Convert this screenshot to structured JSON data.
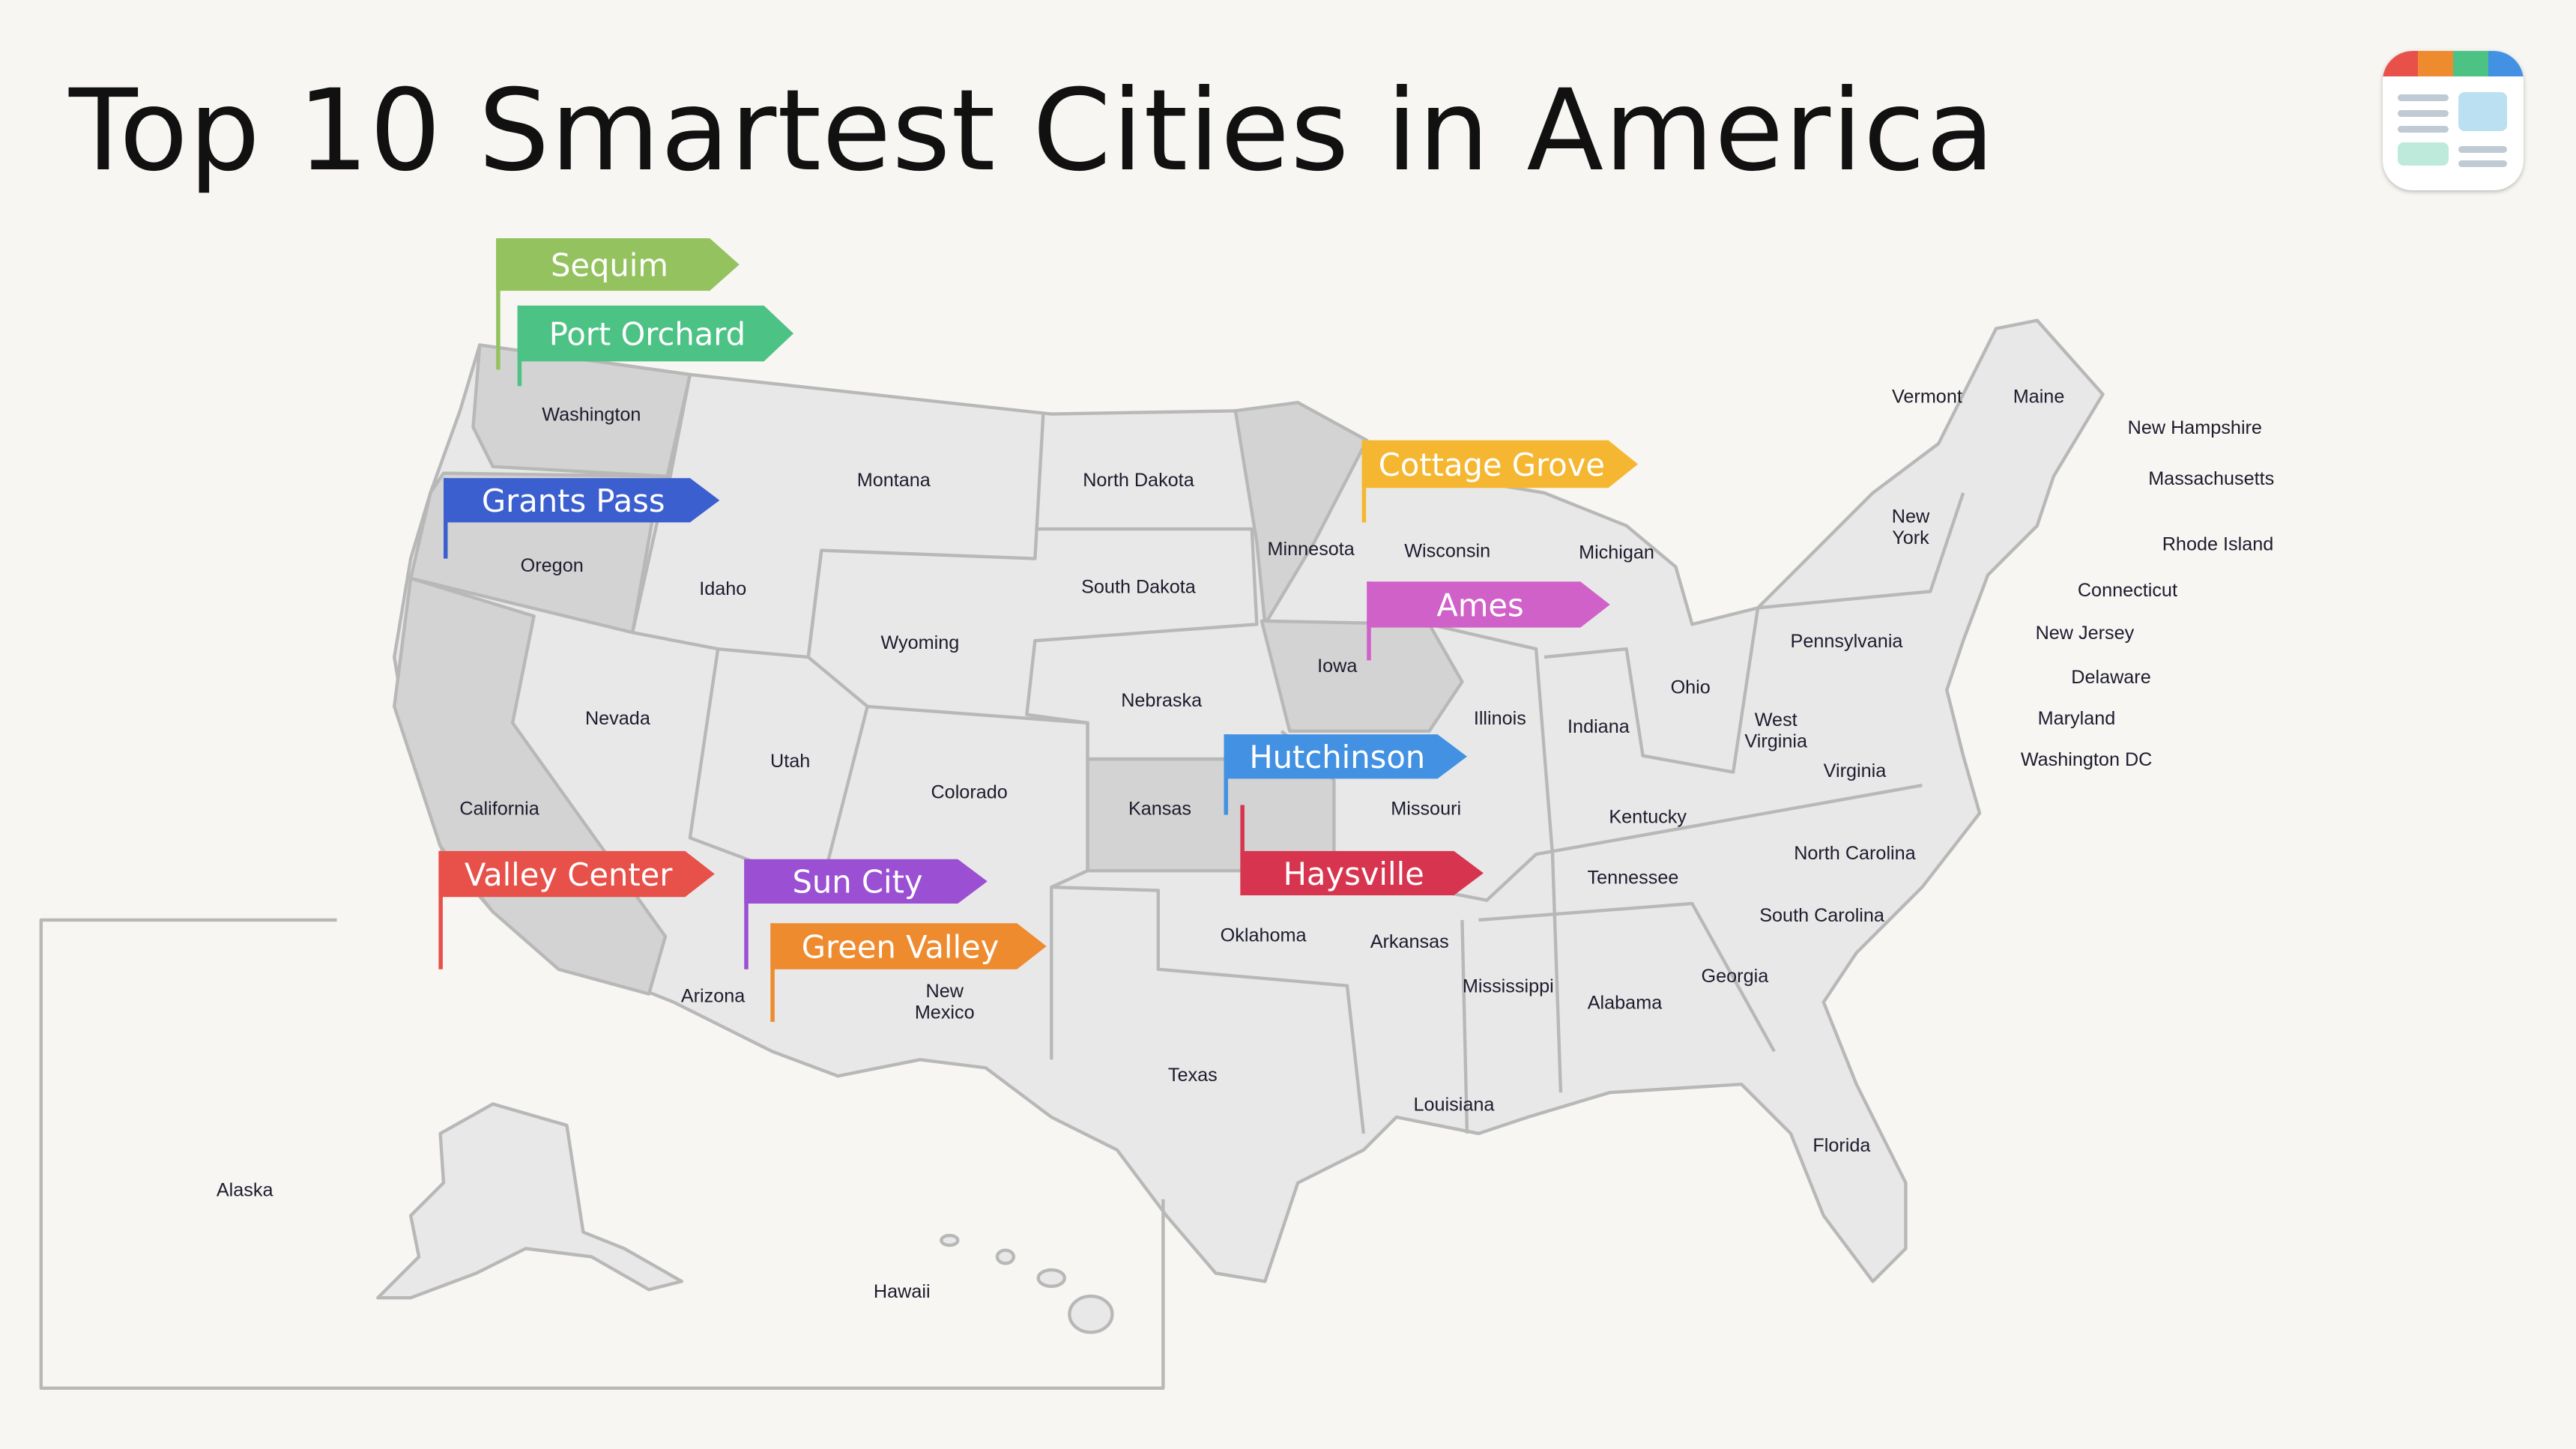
{
  "title": "Top 10 Smartest Cities in America",
  "logo": {
    "name": "app-logo",
    "colors": [
      "#e8504a",
      "#ee8b2e",
      "#4dc285",
      "#4391e2"
    ]
  },
  "map": {
    "fill": "#e8e8e8",
    "highlight_fill": "#d3d3d3",
    "border": "#b8b8b8",
    "highlighted_states": [
      "Washington",
      "Oregon",
      "California",
      "Minnesota",
      "Iowa",
      "Kansas"
    ]
  },
  "states": [
    "Washington",
    "Oregon",
    "California",
    "Idaho",
    "Nevada",
    "Montana",
    "Wyoming",
    "Utah",
    "Arizona",
    "Colorado",
    "New Mexico",
    "North Dakota",
    "South Dakota",
    "Nebraska",
    "Kansas",
    "Oklahoma",
    "Texas",
    "Minnesota",
    "Iowa",
    "Missouri",
    "Arkansas",
    "Louisiana",
    "Wisconsin",
    "Illinois",
    "Michigan",
    "Indiana",
    "Ohio",
    "Kentucky",
    "Tennessee",
    "Mississippi",
    "Alabama",
    "Georgia",
    "Florida",
    "South Carolina",
    "North Carolina",
    "Virginia",
    "West Virginia",
    "Pennsylvania",
    "New York",
    "Vermont",
    "Maine",
    "New Hampshire",
    "Massachusetts",
    "Rhode Island",
    "Connecticut",
    "New Jersey",
    "Delaware",
    "Maryland",
    "Washington DC",
    "Alaska",
    "Hawaii"
  ],
  "cities": [
    {
      "name": "Sequim",
      "color": "#93c25e"
    },
    {
      "name": "Port Orchard",
      "color": "#4dc285"
    },
    {
      "name": "Grants Pass",
      "color": "#3b5fcf"
    },
    {
      "name": "Cottage Grove",
      "color": "#f5b731"
    },
    {
      "name": "Ames",
      "color": "#d061c8"
    },
    {
      "name": "Hutchinson",
      "color": "#4391e2"
    },
    {
      "name": "Haysville",
      "color": "#d7354f"
    },
    {
      "name": "Valley Center",
      "color": "#e8504a"
    },
    {
      "name": "Sun City",
      "color": "#9b4fd3"
    },
    {
      "name": "Green Valley",
      "color": "#ee8b2e"
    }
  ]
}
